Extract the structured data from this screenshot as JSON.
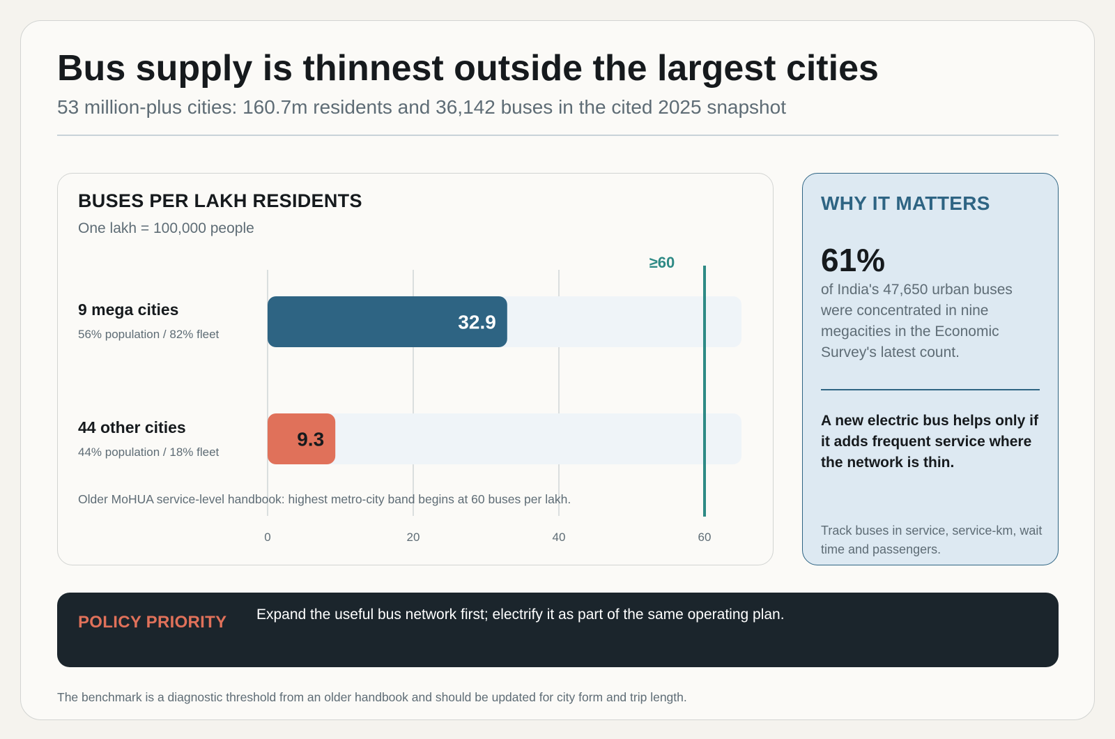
{
  "header": {
    "title": "Bus supply is thinnest outside the largest cities",
    "subtitle": "53 million-plus cities: 160.7m residents and 36,142 buses in the cited 2025 snapshot"
  },
  "chart_data": {
    "type": "bar",
    "orientation": "horizontal",
    "title": "BUSES PER LAKH RESIDENTS",
    "subtitle": "One lakh = 100,000 people",
    "categories": [
      "9 mega cities",
      "44 other cities"
    ],
    "category_notes": [
      "56% population / 82% fleet",
      "44% population / 18% fleet"
    ],
    "values": [
      32.9,
      9.3
    ],
    "value_labels": [
      "32.9",
      "9.3"
    ],
    "bar_colors": [
      "#2e6483",
      "#e0715a"
    ],
    "xlim": [
      0,
      65
    ],
    "xticks": [
      0,
      20,
      40,
      60
    ],
    "benchmark": {
      "value": 60,
      "label": "≥60",
      "color": "#2e8a85"
    },
    "note": "Older MoHUA service-level handbook: highest metro-city band begins at 60 buses per lakh.",
    "grid": true
  },
  "side": {
    "heading": "WHY IT MATTERS",
    "big_stat": "61%",
    "text": "of India's 47,650 urban buses were concentrated in nine megacities in the Economic Survey's latest count.",
    "strong": "A new electric bus helps only if it adds frequent service where the network is thin.",
    "foot": "Track buses in service, service-km, wait time and passengers."
  },
  "policy": {
    "label": "POLICY PRIORITY",
    "text": "Expand the useful bus network first; electrify it as part of the same operating plan."
  },
  "footer": "The benchmark is a diagnostic threshold from an older handbook and should be updated for city form and trip length.",
  "colors": {
    "accent_blue": "#2e6483",
    "accent_coral": "#e0715a",
    "benchmark_teal": "#2e8a85",
    "track": "#eff4f8"
  }
}
